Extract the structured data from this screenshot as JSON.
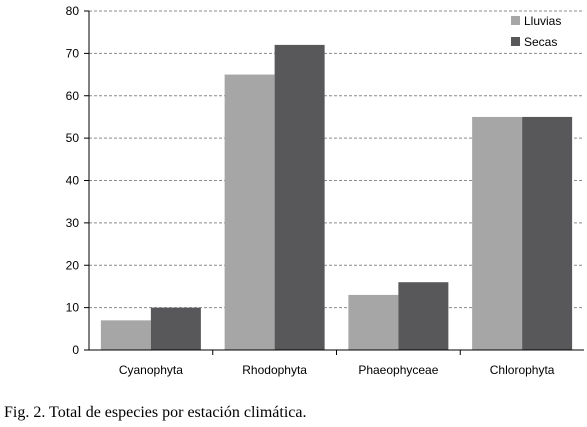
{
  "chart_data": {
    "type": "bar",
    "title": "",
    "xlabel": "",
    "ylabel": "",
    "categories": [
      "Cyanophyta",
      "Rhodophyta",
      "Phaeophyceae",
      "Chlorophyta"
    ],
    "series": [
      {
        "name": "Lluvias",
        "values": [
          7,
          65,
          13,
          55
        ],
        "color": "#a6a6a7"
      },
      {
        "name": "Secas",
        "values": [
          10,
          72,
          16,
          55
        ],
        "color": "#58585a"
      }
    ],
    "ylim": [
      0,
      80
    ],
    "yticks": [
      "0",
      "10",
      "20",
      "30",
      "40",
      "50",
      "60",
      "70",
      "80"
    ],
    "grid": "horizontal-dashed",
    "legend_position": "top-right"
  },
  "caption": "Fig. 2. Total de especies por estación climática."
}
